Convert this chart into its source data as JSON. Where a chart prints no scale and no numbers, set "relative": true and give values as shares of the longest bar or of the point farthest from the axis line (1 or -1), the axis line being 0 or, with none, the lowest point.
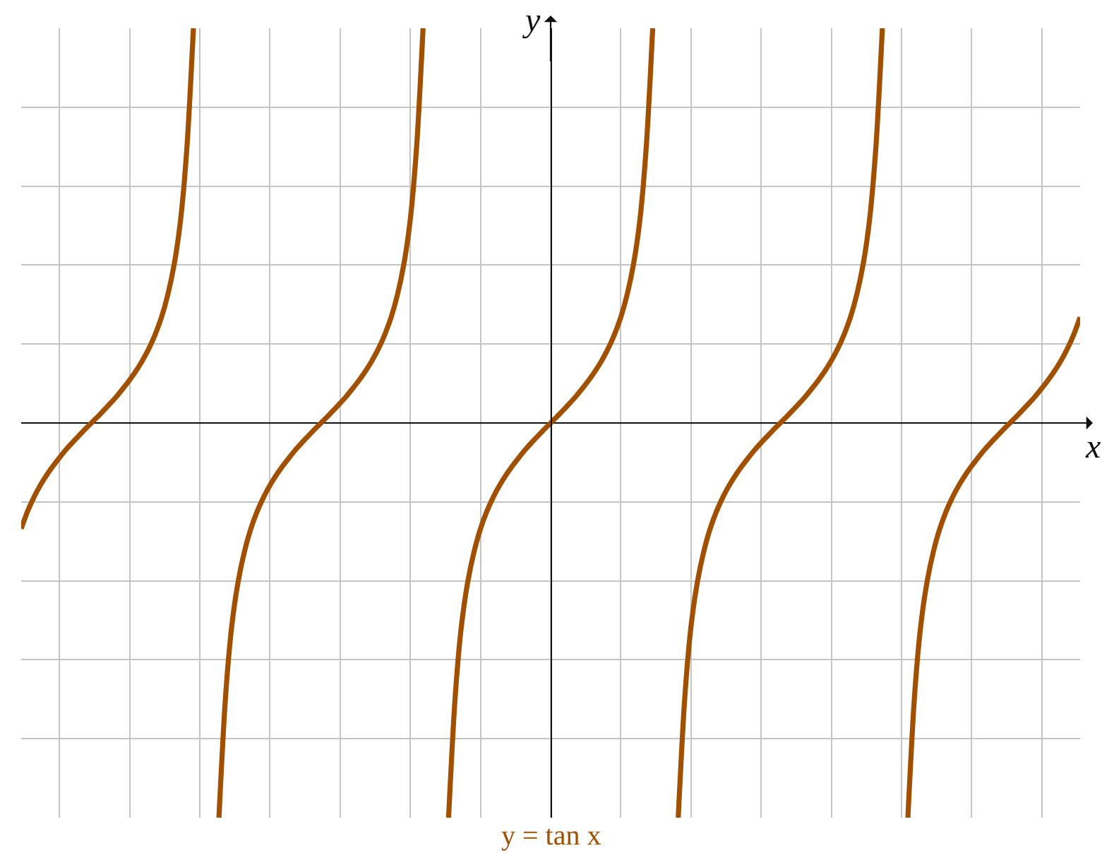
{
  "chart_data": {
    "type": "line",
    "relative": true,
    "grid": true,
    "xlabel": "x",
    "ylabel": "y",
    "categories": [
      null,
      null,
      null,
      null,
      null,
      null,
      null,
      null,
      null,
      null,
      null,
      null,
      null,
      null,
      null,
      null,
      null,
      null,
      null,
      null,
      null,
      null,
      null,
      null,
      null,
      null,
      null,
      null,
      null,
      null,
      null,
      null,
      null,
      null,
      null,
      null,
      null,
      null,
      null,
      null,
      null,
      null,
      null,
      null,
      null,
      null,
      null,
      null,
      null,
      null,
      null,
      null,
      null,
      null,
      null,
      null,
      null,
      null,
      null,
      null,
      null,
      null,
      null,
      null,
      null,
      null,
      null,
      null,
      null,
      null,
      null,
      null,
      null,
      null,
      null,
      null,
      null,
      null,
      null,
      null,
      null,
      null,
      null,
      null,
      null,
      null,
      null,
      null,
      null,
      null,
      null,
      null,
      null,
      null,
      null,
      null,
      null,
      null,
      null,
      null,
      null,
      null,
      null,
      null,
      null,
      null,
      null,
      null,
      null,
      null,
      null,
      null,
      null,
      null,
      null,
      null,
      null,
      null,
      null,
      null,
      null,
      null,
      null,
      null,
      null,
      null,
      null,
      null,
      null,
      null,
      null,
      null,
      null,
      null,
      null,
      null,
      null,
      null,
      null,
      null,
      null,
      null,
      null,
      null,
      null,
      null,
      null,
      null,
      null,
      null,
      null,
      null,
      null,
      null,
      null,
      null,
      null,
      null,
      null,
      null,
      null,
      null,
      null,
      null,
      null,
      null,
      null
    ],
    "series": [
      {
        "name": "y = tan x",
        "color": "#a05000",
        "values": [
          -0.268,
          -0.224,
          -0.188,
          -0.158,
          -0.132,
          -0.109,
          -0.088,
          -0.068,
          -0.05,
          -0.033,
          -0.016,
          0,
          0.016,
          0.033,
          0.05,
          0.068,
          0.088,
          0.109,
          0.132,
          0.158,
          0.188,
          0.224,
          0.268,
          0.326,
          0.403,
          0.516,
          0.702,
          1,
          null,
          null,
          null,
          null,
          null,
          null,
          null,
          null,
          null,
          null,
          null,
          null,
          null,
          null,
          null,
          null,
          null,
          null,
          null,
          null,
          null,
          null,
          null,
          null,
          null,
          null,
          null,
          null,
          null,
          null,
          null,
          null,
          null,
          null,
          null,
          null,
          null,
          null,
          null,
          null,
          null,
          null,
          null,
          null,
          null,
          null,
          null,
          null,
          null,
          null,
          null,
          null,
          null,
          null,
          null,
          null,
          null,
          null,
          null,
          null,
          null,
          null,
          null,
          null,
          null,
          null,
          null,
          null,
          null,
          null,
          null,
          null,
          null,
          null,
          null,
          null,
          null,
          null,
          null,
          null,
          null,
          null,
          null,
          null,
          null,
          null,
          null,
          null,
          null,
          null,
          null,
          null,
          null,
          null,
          null,
          null,
          null,
          null,
          null,
          null,
          null,
          null,
          null,
          null,
          null,
          null,
          null,
          null,
          null,
          null,
          null,
          null,
          null,
          null,
          null,
          null,
          null,
          null,
          null,
          null,
          null,
          null,
          null,
          null,
          null,
          null,
          null,
          null,
          null,
          null,
          null,
          null,
          null,
          null,
          null,
          null,
          null,
          null,
          null
        ]
      },
      {
        "color": "#a05000",
        "values": [
          null,
          null,
          null,
          null,
          null,
          null,
          null,
          null,
          null,
          null,
          null,
          null,
          null,
          null,
          null,
          null,
          null,
          null,
          null,
          null,
          null,
          null,
          null,
          null,
          null,
          null,
          null,
          null,
          null,
          null,
          null,
          -1,
          -0.702,
          -0.516,
          -0.403,
          -0.326,
          -0.268,
          -0.224,
          -0.188,
          -0.158,
          -0.132,
          -0.109,
          -0.088,
          -0.068,
          -0.05,
          -0.033,
          -0.016,
          0,
          0.016,
          0.033,
          0.05,
          0.068,
          0.088,
          0.109,
          0.132,
          0.158,
          0.188,
          0.224,
          0.268,
          0.326,
          0.403,
          0.516,
          0.702,
          1,
          null,
          null,
          null,
          null,
          null,
          null,
          null,
          null,
          null,
          null,
          null,
          null,
          null,
          null,
          null,
          null,
          null,
          null,
          null,
          null,
          null,
          null,
          null,
          null,
          null,
          null,
          null,
          null,
          null,
          null,
          null,
          null,
          null,
          null,
          null,
          null,
          null,
          null,
          null,
          null,
          null,
          null,
          null,
          null,
          null,
          null,
          null,
          null,
          null,
          null,
          null,
          null,
          null,
          null,
          null,
          null,
          null,
          null,
          null,
          null,
          null,
          null,
          null,
          null,
          null,
          null,
          null,
          null,
          null,
          null,
          null,
          null,
          null,
          null,
          null,
          null,
          null,
          null,
          null,
          null,
          null,
          null,
          null,
          null,
          null,
          null,
          null,
          null,
          null,
          null,
          null,
          null,
          null,
          null,
          null,
          null,
          null,
          null,
          null,
          null,
          null,
          null,
          null
        ]
      },
      {
        "color": "#a05000",
        "values": [
          null,
          null,
          null,
          null,
          null,
          null,
          null,
          null,
          null,
          null,
          null,
          null,
          null,
          null,
          null,
          null,
          null,
          null,
          null,
          null,
          null,
          null,
          null,
          null,
          null,
          null,
          null,
          null,
          null,
          null,
          null,
          null,
          null,
          null,
          null,
          null,
          null,
          null,
          null,
          null,
          null,
          null,
          null,
          null,
          null,
          null,
          null,
          null,
          null,
          null,
          null,
          null,
          null,
          null,
          null,
          null,
          null,
          null,
          null,
          null,
          null,
          null,
          null,
          null,
          null,
          null,
          null,
          -1,
          -0.702,
          -0.516,
          -0.403,
          -0.326,
          -0.268,
          -0.224,
          -0.188,
          -0.158,
          -0.132,
          -0.109,
          -0.088,
          -0.068,
          -0.05,
          -0.033,
          -0.016,
          0,
          0.016,
          0.033,
          0.05,
          0.068,
          0.088,
          0.109,
          0.132,
          0.158,
          0.188,
          0.224,
          0.268,
          0.326,
          0.403,
          0.516,
          0.702,
          1,
          null,
          null,
          null,
          null,
          null,
          null,
          null,
          null,
          null,
          null,
          null,
          null,
          null,
          null,
          null,
          null,
          null,
          null,
          null,
          null,
          null,
          null,
          null,
          null,
          null,
          null,
          null,
          null,
          null,
          null,
          null,
          null,
          null,
          null,
          null,
          null,
          null,
          null,
          null,
          null,
          null,
          null,
          null,
          null,
          null,
          null,
          null,
          null,
          null,
          null,
          null,
          null,
          null,
          null,
          null,
          null,
          null,
          null,
          null,
          null,
          null,
          null,
          null,
          null,
          null,
          null,
          null
        ]
      },
      {
        "color": "#a05000",
        "values": [
          null,
          null,
          null,
          null,
          null,
          null,
          null,
          null,
          null,
          null,
          null,
          null,
          null,
          null,
          null,
          null,
          null,
          null,
          null,
          null,
          null,
          null,
          null,
          null,
          null,
          null,
          null,
          null,
          null,
          null,
          null,
          null,
          null,
          null,
          null,
          null,
          null,
          null,
          null,
          null,
          null,
          null,
          null,
          null,
          null,
          null,
          null,
          null,
          null,
          null,
          null,
          null,
          null,
          null,
          null,
          null,
          null,
          null,
          null,
          null,
          null,
          null,
          null,
          null,
          null,
          null,
          null,
          null,
          null,
          null,
          null,
          null,
          null,
          null,
          null,
          null,
          null,
          null,
          null,
          null,
          null,
          null,
          null,
          null,
          null,
          null,
          null,
          null,
          null,
          null,
          null,
          null,
          null,
          null,
          null,
          null,
          null,
          null,
          null,
          null,
          null,
          null,
          null,
          -1,
          -0.702,
          -0.516,
          -0.403,
          -0.326,
          -0.268,
          -0.224,
          -0.188,
          -0.158,
          -0.132,
          -0.109,
          -0.088,
          -0.068,
          -0.05,
          -0.033,
          -0.016,
          0,
          0.016,
          0.033,
          0.05,
          0.068,
          0.088,
          0.109,
          0.132,
          0.158,
          0.188,
          0.224,
          0.268,
          0.326,
          0.403,
          0.516,
          0.702,
          1,
          null,
          null,
          null,
          null,
          null,
          null,
          null,
          null,
          null,
          null,
          null,
          null,
          null,
          null,
          null,
          null,
          null,
          null,
          null,
          null,
          null,
          null,
          null,
          null,
          null,
          null,
          null,
          null,
          null,
          null,
          null
        ]
      },
      {
        "color": "#a05000",
        "values": [
          null,
          null,
          null,
          null,
          null,
          null,
          null,
          null,
          null,
          null,
          null,
          null,
          null,
          null,
          null,
          null,
          null,
          null,
          null,
          null,
          null,
          null,
          null,
          null,
          null,
          null,
          null,
          null,
          null,
          null,
          null,
          null,
          null,
          null,
          null,
          null,
          null,
          null,
          null,
          null,
          null,
          null,
          null,
          null,
          null,
          null,
          null,
          null,
          null,
          null,
          null,
          null,
          null,
          null,
          null,
          null,
          null,
          null,
          null,
          null,
          null,
          null,
          null,
          null,
          null,
          null,
          null,
          null,
          null,
          null,
          null,
          null,
          null,
          null,
          null,
          null,
          null,
          null,
          null,
          null,
          null,
          null,
          null,
          null,
          null,
          null,
          null,
          null,
          null,
          null,
          null,
          null,
          null,
          null,
          null,
          null,
          null,
          null,
          null,
          null,
          null,
          null,
          null,
          null,
          null,
          null,
          null,
          null,
          null,
          null,
          null,
          null,
          null,
          null,
          null,
          null,
          null,
          null,
          null,
          null,
          null,
          null,
          null,
          null,
          null,
          null,
          null,
          null,
          null,
          null,
          null,
          null,
          null,
          null,
          null,
          null,
          null,
          null,
          null,
          -1,
          -0.702,
          -0.516,
          -0.403,
          -0.326,
          -0.268,
          -0.224,
          -0.188,
          -0.158,
          -0.132,
          -0.109,
          -0.088,
          -0.068,
          -0.05,
          -0.033,
          -0.016,
          0,
          0.016,
          0.033,
          0.05,
          0.068,
          0.088,
          0.109,
          0.132,
          0.158,
          0.188,
          0.224,
          0.268
        ]
      }
    ]
  }
}
